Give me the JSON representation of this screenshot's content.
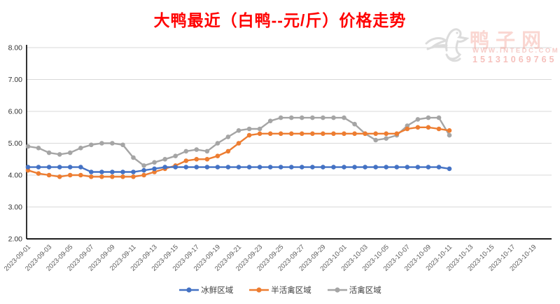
{
  "page": {
    "title": "大鸭最近（白鸭--元/斤）价格走势",
    "title_color": "#ff0000"
  },
  "watermark": {
    "brand": "鸭子网",
    "url": "WWW.INTEDC.COM",
    "phone": "15131069765"
  },
  "chart_data": {
    "type": "line",
    "title": "大鸭最近（白鸭--元/斤）价格走势",
    "ylabel": "",
    "xlabel": "",
    "ylim": [
      2.0,
      8.0
    ],
    "ytick_labels": [
      "2.00",
      "3.00",
      "4.00",
      "5.00",
      "6.00",
      "7.00",
      "8.00"
    ],
    "grid": "horizontal-only",
    "legend_position": "bottom-center",
    "axis_color": "#000000",
    "gridline_color": "#d9d9d9",
    "tick_label_color": "#595959",
    "x_axis_tick_labels": [
      "2023-09-01",
      "2023-09-03",
      "2023-09-05",
      "2023-09-07",
      "2023-09-09",
      "2023-09-11",
      "2023-09-13",
      "2023-09-15",
      "2023-09-17",
      "2023-09-19",
      "2023-09-21",
      "2023-09-23",
      "2023-09-25",
      "2023-09-27",
      "2023-09-29",
      "2023-10-01",
      "2023-10-03",
      "2023-10-05",
      "2023-10-07",
      "2023-10-09",
      "2023-10-11",
      "2023-10-13",
      "2023-10-15",
      "2023-10-17",
      "2023-10-19"
    ],
    "x": [
      "2023-09-01",
      "2023-09-02",
      "2023-09-03",
      "2023-09-04",
      "2023-09-05",
      "2023-09-06",
      "2023-09-07",
      "2023-09-08",
      "2023-09-09",
      "2023-09-10",
      "2023-09-11",
      "2023-09-12",
      "2023-09-13",
      "2023-09-14",
      "2023-09-15",
      "2023-09-16",
      "2023-09-17",
      "2023-09-18",
      "2023-09-19",
      "2023-09-20",
      "2023-09-21",
      "2023-09-22",
      "2023-09-23",
      "2023-09-24",
      "2023-09-25",
      "2023-09-26",
      "2023-09-27",
      "2023-09-28",
      "2023-09-29",
      "2023-09-30",
      "2023-10-01",
      "2023-10-02",
      "2023-10-03",
      "2023-10-04",
      "2023-10-05",
      "2023-10-06",
      "2023-10-07",
      "2023-10-08",
      "2023-10-09",
      "2023-10-10",
      "2023-10-11"
    ],
    "series": [
      {
        "name": "冰鲜区域",
        "color": "#4472C4",
        "values": [
          4.25,
          4.25,
          4.25,
          4.25,
          4.25,
          4.25,
          4.1,
          4.1,
          4.1,
          4.1,
          4.1,
          4.15,
          4.2,
          4.25,
          4.25,
          4.25,
          4.25,
          4.25,
          4.25,
          4.25,
          4.25,
          4.25,
          4.25,
          4.25,
          4.25,
          4.25,
          4.25,
          4.25,
          4.25,
          4.25,
          4.25,
          4.25,
          4.25,
          4.25,
          4.25,
          4.25,
          4.25,
          4.25,
          4.25,
          4.25,
          4.2
        ]
      },
      {
        "name": "半活禽区域",
        "color": "#ED7D31",
        "values": [
          4.15,
          4.05,
          4.0,
          3.95,
          4.0,
          4.0,
          3.95,
          3.95,
          3.95,
          3.95,
          3.95,
          4.0,
          4.1,
          4.2,
          4.3,
          4.45,
          4.5,
          4.5,
          4.6,
          4.75,
          5.0,
          5.25,
          5.3,
          5.3,
          5.3,
          5.3,
          5.3,
          5.3,
          5.3,
          5.3,
          5.3,
          5.3,
          5.3,
          5.3,
          5.3,
          5.3,
          5.45,
          5.5,
          5.5,
          5.45,
          5.4
        ]
      },
      {
        "name": "活禽区域",
        "color": "#A5A5A5",
        "values": [
          4.9,
          4.85,
          4.7,
          4.65,
          4.7,
          4.85,
          4.95,
          5.0,
          5.0,
          4.95,
          4.55,
          4.3,
          4.4,
          4.5,
          4.6,
          4.75,
          4.8,
          4.75,
          5.0,
          5.2,
          5.4,
          5.45,
          5.45,
          5.7,
          5.8,
          5.8,
          5.8,
          5.8,
          5.8,
          5.8,
          5.8,
          5.6,
          5.3,
          5.1,
          5.15,
          5.25,
          5.55,
          5.75,
          5.8,
          5.8,
          5.25
        ]
      }
    ]
  }
}
